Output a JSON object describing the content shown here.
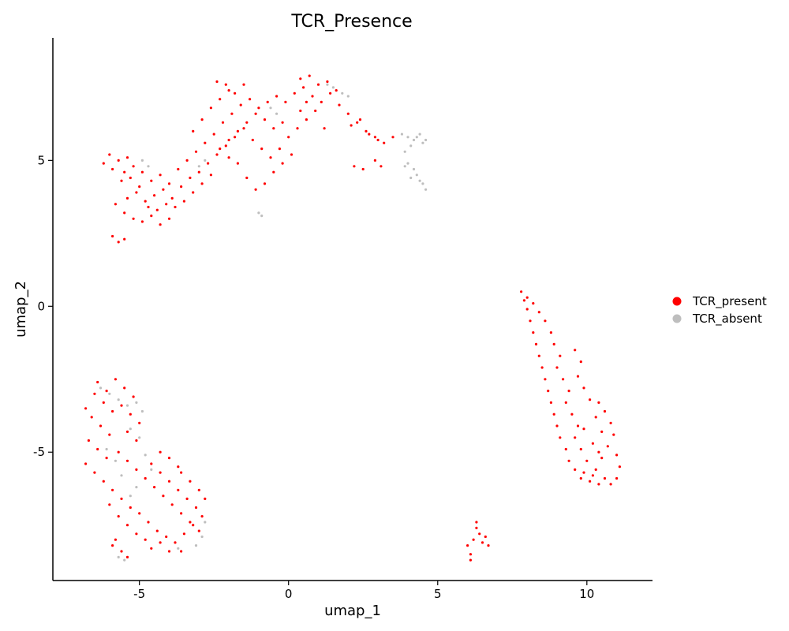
{
  "chart_data": {
    "type": "scatter",
    "title": "TCR_Presence",
    "xlabel": "umap_1",
    "ylabel": "umap_2",
    "xlim": [
      -7.9,
      12.2
    ],
    "ylim": [
      -9.4,
      9.2
    ],
    "x_ticks": [
      -5,
      0,
      5,
      10
    ],
    "x_tick_labels": [
      "-5",
      "0",
      "5",
      "10"
    ],
    "y_ticks": [
      -5,
      0,
      5
    ],
    "y_tick_labels": [
      "-5",
      "0",
      "5"
    ],
    "grid": false,
    "legend_position": "right",
    "series": [
      {
        "name": "TCR_present",
        "color": "#ff0000",
        "points": [
          [
            -6.0,
            5.2
          ],
          [
            -5.7,
            5.0
          ],
          [
            -5.4,
            5.1
          ],
          [
            -6.2,
            4.9
          ],
          [
            -5.9,
            4.7
          ],
          [
            -5.5,
            4.6
          ],
          [
            -5.2,
            4.8
          ],
          [
            -4.9,
            4.6
          ],
          [
            -4.6,
            4.3
          ],
          [
            -4.3,
            4.5
          ],
          [
            -4.0,
            4.2
          ],
          [
            -3.7,
            4.7
          ],
          [
            -3.4,
            5.0
          ],
          [
            -3.1,
            5.3
          ],
          [
            -2.8,
            5.6
          ],
          [
            -2.5,
            5.9
          ],
          [
            -2.2,
            6.3
          ],
          [
            -1.9,
            6.6
          ],
          [
            -1.6,
            6.9
          ],
          [
            -1.3,
            7.1
          ],
          [
            -1.0,
            6.8
          ],
          [
            -0.7,
            7.0
          ],
          [
            -0.4,
            7.2
          ],
          [
            -0.1,
            7.0
          ],
          [
            0.2,
            7.3
          ],
          [
            0.5,
            7.5
          ],
          [
            0.8,
            7.2
          ],
          [
            1.1,
            7.0
          ],
          [
            1.4,
            7.3
          ],
          [
            1.7,
            6.9
          ],
          [
            2.0,
            6.6
          ],
          [
            2.3,
            6.3
          ],
          [
            2.6,
            6.0
          ],
          [
            2.9,
            5.8
          ],
          [
            3.2,
            5.6
          ],
          [
            3.5,
            5.8
          ],
          [
            -5.8,
            3.5
          ],
          [
            -5.5,
            3.2
          ],
          [
            -5.2,
            3.0
          ],
          [
            -4.9,
            2.9
          ],
          [
            -4.6,
            3.1
          ],
          [
            -4.3,
            2.8
          ],
          [
            -4.0,
            3.0
          ],
          [
            -3.8,
            3.4
          ],
          [
            -5.9,
            2.4
          ],
          [
            -5.7,
            2.2
          ],
          [
            -5.5,
            2.3
          ],
          [
            -5.4,
            3.7
          ],
          [
            -5.1,
            3.9
          ],
          [
            -4.8,
            3.6
          ],
          [
            -4.5,
            3.8
          ],
          [
            -4.2,
            4.0
          ],
          [
            -3.9,
            3.7
          ],
          [
            -3.6,
            4.1
          ],
          [
            -3.3,
            4.4
          ],
          [
            -3.0,
            4.6
          ],
          [
            -2.7,
            4.9
          ],
          [
            -2.4,
            5.2
          ],
          [
            -2.1,
            5.5
          ],
          [
            -1.8,
            5.8
          ],
          [
            -1.5,
            6.1
          ],
          [
            -1.2,
            5.7
          ],
          [
            -0.9,
            5.4
          ],
          [
            -0.6,
            5.1
          ],
          [
            -0.3,
            5.4
          ],
          [
            0.0,
            5.8
          ],
          [
            0.3,
            6.1
          ],
          [
            0.6,
            6.4
          ],
          [
            0.9,
            6.7
          ],
          [
            1.2,
            6.1
          ],
          [
            -1.4,
            4.4
          ],
          [
            -1.1,
            4.0
          ],
          [
            -0.8,
            4.2
          ],
          [
            -0.5,
            4.6
          ],
          [
            -0.2,
            4.9
          ],
          [
            0.1,
            5.2
          ],
          [
            -3.2,
            6.0
          ],
          [
            -2.9,
            6.4
          ],
          [
            -2.6,
            6.8
          ],
          [
            -2.3,
            7.1
          ],
          [
            -2.0,
            7.4
          ],
          [
            -2.4,
            7.7
          ],
          [
            -2.1,
            7.6
          ],
          [
            -1.8,
            7.3
          ],
          [
            -1.5,
            7.6
          ],
          [
            0.4,
            7.8
          ],
          [
            0.7,
            7.9
          ],
          [
            1.0,
            7.6
          ],
          [
            1.3,
            7.7
          ],
          [
            1.6,
            7.4
          ],
          [
            -5.6,
            4.3
          ],
          [
            -5.3,
            4.4
          ],
          [
            -5.0,
            4.1
          ],
          [
            -4.7,
            3.4
          ],
          [
            -4.4,
            3.3
          ],
          [
            -4.1,
            3.5
          ],
          [
            -3.5,
            3.6
          ],
          [
            -3.2,
            3.9
          ],
          [
            -2.9,
            4.2
          ],
          [
            -2.6,
            4.5
          ],
          [
            2.1,
            6.2
          ],
          [
            2.4,
            6.4
          ],
          [
            2.7,
            5.9
          ],
          [
            3.0,
            5.7
          ],
          [
            2.2,
            4.8
          ],
          [
            2.5,
            4.7
          ],
          [
            2.9,
            5.0
          ],
          [
            3.1,
            4.8
          ],
          [
            -1.7,
            4.9
          ],
          [
            -2.0,
            5.1
          ],
          [
            -0.2,
            6.3
          ],
          [
            0.4,
            6.7
          ],
          [
            0.6,
            7.0
          ],
          [
            -0.5,
            6.1
          ],
          [
            -0.8,
            6.4
          ],
          [
            -1.1,
            6.6
          ],
          [
            -1.4,
            6.3
          ],
          [
            -1.7,
            6.0
          ],
          [
            -2.0,
            5.7
          ],
          [
            -2.3,
            5.4
          ],
          [
            -6.5,
            -3.0
          ],
          [
            -6.2,
            -3.3
          ],
          [
            -5.9,
            -3.6
          ],
          [
            -6.6,
            -3.8
          ],
          [
            -6.3,
            -4.1
          ],
          [
            -6.0,
            -4.4
          ],
          [
            -6.7,
            -4.6
          ],
          [
            -6.4,
            -4.9
          ],
          [
            -6.1,
            -5.2
          ],
          [
            -6.8,
            -5.4
          ],
          [
            -6.5,
            -5.7
          ],
          [
            -6.2,
            -6.0
          ],
          [
            -5.9,
            -6.3
          ],
          [
            -5.6,
            -6.6
          ],
          [
            -5.3,
            -6.9
          ],
          [
            -5.0,
            -7.1
          ],
          [
            -4.7,
            -7.4
          ],
          [
            -4.4,
            -7.7
          ],
          [
            -4.1,
            -7.9
          ],
          [
            -3.8,
            -8.1
          ],
          [
            -3.5,
            -7.8
          ],
          [
            -3.2,
            -7.5
          ],
          [
            -2.9,
            -7.2
          ],
          [
            -3.1,
            -6.9
          ],
          [
            -3.4,
            -6.6
          ],
          [
            -3.7,
            -6.3
          ],
          [
            -4.0,
            -6.0
          ],
          [
            -4.3,
            -5.7
          ],
          [
            -4.6,
            -5.4
          ],
          [
            -4.3,
            -5.0
          ],
          [
            -4.0,
            -5.2
          ],
          [
            -3.7,
            -5.5
          ],
          [
            -5.8,
            -2.5
          ],
          [
            -5.5,
            -2.8
          ],
          [
            -5.2,
            -3.1
          ],
          [
            -5.6,
            -3.4
          ],
          [
            -5.3,
            -3.7
          ],
          [
            -5.0,
            -4.0
          ],
          [
            -5.4,
            -4.3
          ],
          [
            -5.1,
            -4.6
          ],
          [
            -5.7,
            -5.0
          ],
          [
            -5.4,
            -5.3
          ],
          [
            -5.1,
            -5.6
          ],
          [
            -4.8,
            -5.9
          ],
          [
            -4.5,
            -6.2
          ],
          [
            -4.2,
            -6.5
          ],
          [
            -3.9,
            -6.8
          ],
          [
            -3.6,
            -7.1
          ],
          [
            -3.3,
            -7.4
          ],
          [
            -3.0,
            -7.7
          ],
          [
            -5.9,
            -8.2
          ],
          [
            -5.6,
            -8.4
          ],
          [
            -5.4,
            -8.6
          ],
          [
            -5.8,
            -8.0
          ],
          [
            -4.6,
            -8.3
          ],
          [
            -4.3,
            -8.1
          ],
          [
            -4.0,
            -8.4
          ],
          [
            -6.4,
            -2.6
          ],
          [
            -6.1,
            -2.9
          ],
          [
            -6.8,
            -3.5
          ],
          [
            -6.0,
            -6.8
          ],
          [
            -5.7,
            -7.2
          ],
          [
            -5.4,
            -7.5
          ],
          [
            -5.1,
            -7.8
          ],
          [
            -4.8,
            -8.0
          ],
          [
            -3.6,
            -8.4
          ],
          [
            -2.8,
            -6.6
          ],
          [
            -3.0,
            -6.3
          ],
          [
            -3.3,
            -6.0
          ],
          [
            -3.6,
            -5.7
          ],
          [
            7.8,
            0.5
          ],
          [
            8.0,
            0.3
          ],
          [
            8.2,
            0.1
          ],
          [
            8.4,
            -0.2
          ],
          [
            8.6,
            -0.5
          ],
          [
            8.8,
            -0.9
          ],
          [
            8.9,
            -1.3
          ],
          [
            9.1,
            -1.7
          ],
          [
            9.0,
            -2.1
          ],
          [
            9.2,
            -2.5
          ],
          [
            9.4,
            -2.9
          ],
          [
            9.3,
            -3.3
          ],
          [
            9.5,
            -3.7
          ],
          [
            9.7,
            -4.1
          ],
          [
            9.6,
            -4.5
          ],
          [
            9.8,
            -4.9
          ],
          [
            10.0,
            -5.3
          ],
          [
            9.9,
            -5.7
          ],
          [
            10.1,
            -6.0
          ],
          [
            10.3,
            -5.6
          ],
          [
            10.5,
            -5.2
          ],
          [
            10.7,
            -4.8
          ],
          [
            10.9,
            -4.4
          ],
          [
            10.8,
            -4.0
          ],
          [
            10.6,
            -3.6
          ],
          [
            10.4,
            -3.3
          ],
          [
            11.0,
            -5.1
          ],
          [
            11.1,
            -5.5
          ],
          [
            11.0,
            -5.9
          ],
          [
            10.8,
            -6.1
          ],
          [
            10.6,
            -5.9
          ],
          [
            10.4,
            -6.1
          ],
          [
            10.2,
            -5.8
          ],
          [
            9.8,
            -5.9
          ],
          [
            9.6,
            -5.6
          ],
          [
            9.4,
            -5.3
          ],
          [
            9.3,
            -4.9
          ],
          [
            9.1,
            -4.5
          ],
          [
            9.0,
            -4.1
          ],
          [
            8.9,
            -3.7
          ],
          [
            8.8,
            -3.3
          ],
          [
            8.7,
            -2.9
          ],
          [
            8.6,
            -2.5
          ],
          [
            8.5,
            -2.1
          ],
          [
            8.4,
            -1.7
          ],
          [
            8.3,
            -1.3
          ],
          [
            8.2,
            -0.9
          ],
          [
            8.1,
            -0.5
          ],
          [
            8.0,
            -0.1
          ],
          [
            7.9,
            0.2
          ],
          [
            9.6,
            -1.5
          ],
          [
            9.8,
            -1.9
          ],
          [
            9.7,
            -2.4
          ],
          [
            9.9,
            -2.8
          ],
          [
            10.1,
            -3.2
          ],
          [
            10.3,
            -3.8
          ],
          [
            10.5,
            -4.3
          ],
          [
            10.2,
            -4.7
          ],
          [
            10.4,
            -5.0
          ],
          [
            9.9,
            -4.2
          ],
          [
            6.0,
            -8.2
          ],
          [
            6.1,
            -8.5
          ],
          [
            6.2,
            -8.0
          ],
          [
            6.3,
            -7.6
          ],
          [
            6.4,
            -7.8
          ],
          [
            6.5,
            -8.1
          ],
          [
            6.6,
            -7.9
          ],
          [
            6.7,
            -8.2
          ],
          [
            6.1,
            -8.7
          ],
          [
            6.3,
            -7.4
          ]
        ]
      },
      {
        "name": "TCR_absent",
        "color": "#bebebe",
        "points": [
          [
            3.8,
            5.9
          ],
          [
            4.0,
            5.8
          ],
          [
            4.2,
            5.7
          ],
          [
            4.4,
            5.9
          ],
          [
            4.6,
            5.7
          ],
          [
            4.1,
            5.5
          ],
          [
            3.9,
            5.3
          ],
          [
            4.0,
            4.9
          ],
          [
            4.2,
            4.7
          ],
          [
            4.3,
            4.5
          ],
          [
            4.4,
            4.3
          ],
          [
            4.5,
            4.2
          ],
          [
            4.6,
            4.0
          ],
          [
            4.1,
            4.4
          ],
          [
            3.9,
            4.8
          ],
          [
            4.3,
            5.8
          ],
          [
            4.5,
            5.6
          ],
          [
            -1.0,
            3.2
          ],
          [
            -0.9,
            3.1
          ],
          [
            1.3,
            7.6
          ],
          [
            1.5,
            7.5
          ],
          [
            1.8,
            7.3
          ],
          [
            2.0,
            7.2
          ],
          [
            -0.4,
            6.6
          ],
          [
            -0.6,
            6.8
          ],
          [
            -2.8,
            5.0
          ],
          [
            -3.0,
            4.8
          ],
          [
            -4.7,
            4.8
          ],
          [
            -4.9,
            5.0
          ],
          [
            -6.3,
            -2.8
          ],
          [
            -6.0,
            -3.0
          ],
          [
            -5.7,
            -3.2
          ],
          [
            -5.4,
            -3.4
          ],
          [
            -5.1,
            -3.3
          ],
          [
            -4.9,
            -3.6
          ],
          [
            -5.3,
            -4.2
          ],
          [
            -5.0,
            -4.5
          ],
          [
            -4.8,
            -5.1
          ],
          [
            -5.1,
            -6.2
          ],
          [
            -5.3,
            -6.5
          ],
          [
            -4.6,
            -5.6
          ],
          [
            -2.8,
            -7.4
          ],
          [
            -2.9,
            -7.9
          ],
          [
            -3.1,
            -8.2
          ],
          [
            -5.7,
            -8.6
          ],
          [
            -5.5,
            -8.7
          ],
          [
            -3.7,
            -8.3
          ],
          [
            -6.1,
            -4.9
          ],
          [
            -5.8,
            -5.3
          ],
          [
            -5.6,
            -5.8
          ]
        ]
      }
    ]
  }
}
